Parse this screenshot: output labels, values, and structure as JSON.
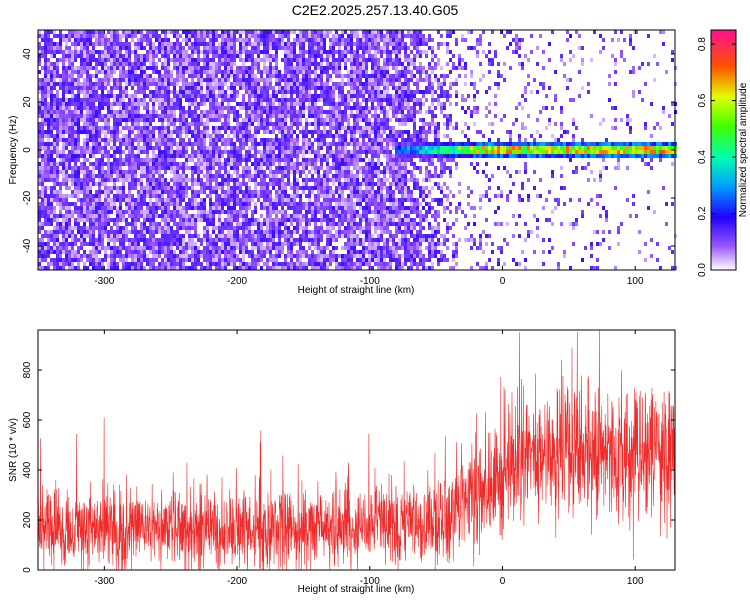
{
  "title": "C2E2.2025.257.13.40.G05",
  "chart_data": [
    {
      "type": "heatmap",
      "xlabel": "Height of straight line (km)",
      "ylabel": "Frequency (Hz)",
      "xlim": [
        -350,
        130
      ],
      "ylim": [
        -50,
        50
      ],
      "x_ticks": [
        -300,
        -200,
        -100,
        0,
        100
      ],
      "y_ticks": [
        -40,
        -20,
        0,
        20,
        40
      ],
      "colorbar": {
        "label": "Normalized spectral amplitude",
        "range": [
          0.0,
          0.85
        ],
        "ticks": [
          0.0,
          0.2,
          0.4,
          0.6,
          0.8
        ],
        "tick_labels": [
          "0.0",
          "0.2",
          "0.4",
          "0.6",
          "0.8"
        ]
      },
      "features": {
        "noise_region_x": [
          -350,
          -50
        ],
        "signal_line_x": [
          -80,
          130
        ],
        "signal_frequency": 0,
        "noise_amplitude": 0.1,
        "signal_amplitude_peak": 0.85
      }
    },
    {
      "type": "line",
      "xlabel": "Height of straight line (km)",
      "ylabel": "SNR (10 * v/v)",
      "xlim": [
        -350,
        130
      ],
      "ylim": [
        0,
        960
      ],
      "x_ticks": [
        -300,
        -200,
        -100,
        0,
        100
      ],
      "y_ticks": [
        0,
        200,
        400,
        600,
        800
      ],
      "series": [
        {
          "color": "#ee2c2c",
          "trend": [
            {
              "x": -350,
              "y": 170
            },
            {
              "x": -200,
              "y": 160
            },
            {
              "x": -100,
              "y": 170
            },
            {
              "x": -50,
              "y": 180
            },
            {
              "x": -30,
              "y": 260
            },
            {
              "x": 0,
              "y": 380
            },
            {
              "x": 20,
              "y": 470
            },
            {
              "x": 60,
              "y": 470
            },
            {
              "x": 130,
              "y": 460
            }
          ],
          "spread": [
            {
              "x": -350,
              "y": 90
            },
            {
              "x": -50,
              "y": 90
            },
            {
              "x": 0,
              "y": 140
            },
            {
              "x": 130,
              "y": 160
            }
          ]
        }
      ]
    }
  ]
}
